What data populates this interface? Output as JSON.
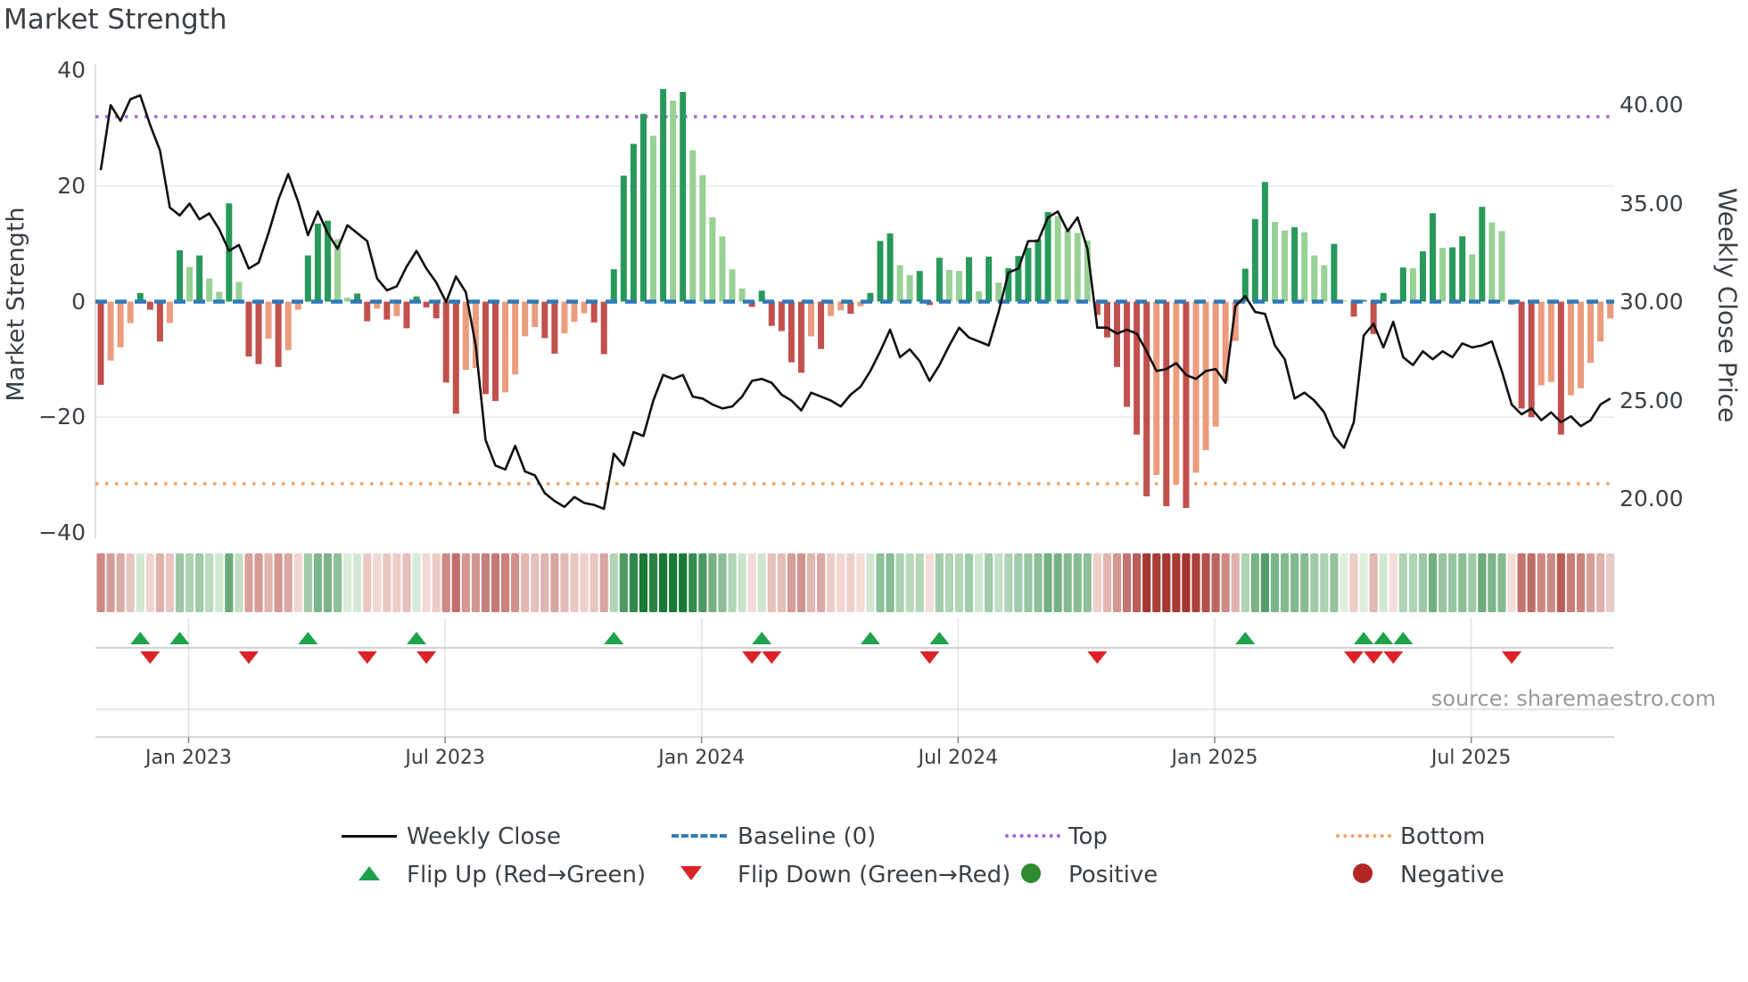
{
  "title": "Market Strength",
  "source": "source: sharemaestro.com",
  "left_axis_title": "Market Strength",
  "right_axis_title": "Weekly Close Price",
  "legend": {
    "weekly_close": "Weekly Close",
    "baseline": "Baseline (0)",
    "top": "Top",
    "bottom": "Bottom",
    "flip_up": "Flip Up (Red→Green)",
    "flip_down": "Flip Down (Green→Red)",
    "positive": "Positive",
    "negative": "Negative"
  },
  "colors": {
    "bar_pos_strong": "#28995a",
    "bar_pos_soft": "#98d194",
    "bar_neg_strong": "#c2504d",
    "bar_neg_soft": "#eb9c7d",
    "baseline": "#2e7ab8",
    "top_line": "#a362d8",
    "bottom_line": "#f2a25c",
    "price_line": "#111111",
    "flip_up_marker": "#1ea24b",
    "flip_down_marker": "#dc2226",
    "positive_dot": "#2e8b2e",
    "negative_dot": "#b22626"
  },
  "chart_data": {
    "type": "bar",
    "subtype": "bar+line composite with heatmap strip and flip markers",
    "title": "Market Strength",
    "xlabel": "",
    "ylabel": "Market Strength",
    "y2label": "Weekly Close Price",
    "ylim": [
      -41,
      41
    ],
    "y2lim": [
      16.8,
      42.1
    ],
    "left_ticks": [
      "40",
      "20",
      "0",
      "−20",
      "−40"
    ],
    "left_tick_values": [
      40,
      20,
      0,
      -20,
      -40
    ],
    "right_ticks": [
      "40.00",
      "35.00",
      "30.00",
      "25.00",
      "20.00"
    ],
    "right_tick_values": [
      40,
      35,
      30,
      25,
      20
    ],
    "x_tick_labels": [
      "Jan 2023",
      "Jul 2023",
      "Jan 2024",
      "Jul 2024",
      "Jan 2025",
      "Jul 2025"
    ],
    "x_tick_weeks": [
      8.9,
      34.9,
      60.9,
      86.9,
      112.9,
      138.9
    ],
    "baseline_value": 0,
    "top_threshold": 32,
    "bottom_threshold": -31.5,
    "weeks_span": "weekly bars, Nov 2022 - Oct 2025",
    "market_strength": [
      -14.4,
      -10.2,
      -7.9,
      -3.7,
      1.5,
      -1.4,
      -6.9,
      -3.7,
      8.9,
      6.0,
      8.0,
      4.0,
      1.7,
      17.0,
      3.4,
      -9.5,
      -10.8,
      -6.4,
      -11.3,
      -8.4,
      -1.4,
      8.0,
      13.5,
      14.0,
      10.8,
      0.7,
      1.4,
      -3.4,
      -1.2,
      -3.1,
      -2.5,
      -4.6,
      0.9,
      -1.0,
      -2.9,
      -14.0,
      -19.4,
      -11.8,
      -11.5,
      -16.0,
      -17.2,
      -15.7,
      -12.6,
      -6.0,
      -4.4,
      -6.3,
      -9.0,
      -5.5,
      -3.5,
      -2.0,
      -3.6,
      -9.1,
      5.6,
      21.8,
      27.3,
      32.5,
      28.7,
      36.8,
      34.8,
      36.3,
      26.2,
      21.9,
      14.6,
      11.3,
      5.6,
      2.3,
      -0.9,
      1.9,
      -4.2,
      -5.1,
      -10.5,
      -12.3,
      -6.0,
      -8.2,
      -2.5,
      -1.5,
      -2.1,
      -0.8,
      1.5,
      10.5,
      11.8,
      6.3,
      4.6,
      5.3,
      -0.6,
      7.6,
      5.5,
      5.3,
      7.7,
      1.8,
      7.8,
      3.3,
      5.8,
      7.9,
      9.3,
      10.8,
      15.5,
      14.8,
      12.3,
      11.9,
      10.6,
      -2.3,
      -6.2,
      -11.3,
      -18.2,
      -23.0,
      -33.7,
      -30.0,
      -35.4,
      -31.6,
      -35.7,
      -29.6,
      -25.7,
      -21.6,
      -13.8,
      -6.8,
      5.7,
      14.3,
      20.7,
      13.8,
      12.3,
      12.9,
      12.0,
      8.0,
      6.3,
      10.0,
      0.2,
      -2.6,
      0.3,
      -5.6,
      1.5,
      -0.4,
      5.9,
      5.8,
      8.7,
      15.3,
      9.3,
      9.4,
      11.3,
      8.2,
      16.4,
      13.7,
      12.2,
      -0.5,
      -18.5,
      -20.0,
      -14.5,
      -13.9,
      -23.0,
      -16.2,
      -15.0,
      -10.6,
      -6.9,
      -2.9
    ],
    "weekly_close": [
      36.7,
      40.0,
      39.2,
      40.3,
      40.5,
      39.0,
      37.7,
      34.8,
      34.4,
      35.0,
      34.2,
      34.5,
      33.7,
      32.6,
      32.9,
      31.7,
      32.0,
      33.5,
      35.2,
      36.5,
      35.1,
      33.4,
      34.6,
      33.5,
      32.7,
      33.9,
      33.5,
      33.1,
      31.2,
      30.6,
      30.8,
      31.8,
      32.6,
      31.7,
      31.0,
      30.0,
      31.3,
      30.5,
      27.8,
      23.0,
      21.7,
      21.5,
      22.7,
      21.4,
      21.2,
      20.3,
      19.9,
      19.6,
      20.1,
      19.8,
      19.7,
      19.5,
      22.3,
      21.7,
      23.4,
      23.2,
      25.0,
      26.3,
      26.1,
      26.3,
      25.2,
      25.1,
      24.8,
      24.6,
      24.7,
      25.2,
      26.0,
      26.1,
      25.9,
      25.3,
      25.0,
      24.5,
      25.4,
      25.2,
      25.0,
      24.7,
      25.3,
      25.7,
      26.5,
      27.5,
      28.6,
      27.2,
      27.6,
      27.0,
      26.0,
      26.8,
      27.8,
      28.7,
      28.2,
      28.0,
      27.8,
      29.5,
      31.5,
      31.7,
      33.1,
      33.1,
      34.3,
      34.6,
      33.6,
      34.3,
      32.7,
      28.7,
      28.7,
      28.4,
      28.6,
      28.4,
      27.5,
      26.5,
      26.6,
      26.9,
      26.3,
      26.1,
      26.5,
      26.6,
      25.9,
      29.8,
      30.3,
      29.5,
      29.4,
      27.8,
      27.1,
      25.1,
      25.4,
      25.0,
      24.4,
      23.2,
      22.6,
      23.9,
      28.3,
      28.9,
      27.7,
      29.0,
      27.2,
      26.8,
      27.5,
      27.1,
      27.5,
      27.2,
      27.9,
      27.7,
      27.8,
      28.0,
      26.5,
      24.8,
      24.3,
      24.6,
      24.0,
      24.4,
      23.9,
      24.2,
      23.7,
      24.0,
      24.8,
      25.1
    ],
    "flip_up_weeks": [
      4,
      8,
      21,
      32,
      52,
      67,
      78,
      85,
      116,
      128,
      130,
      132
    ],
    "flip_down_weeks": [
      5,
      15,
      27,
      33,
      66,
      68,
      84,
      101,
      127,
      129,
      131,
      143
    ],
    "legend_entries": [
      "Weekly Close",
      "Baseline (0)",
      "Top",
      "Bottom",
      "Flip Up (Red→Green)",
      "Flip Down (Green→Red)",
      "Positive",
      "Negative"
    ],
    "grid": "horizontal at ±20, faint vertical at half-year ticks in marker band",
    "legend_position": "bottom, two centered rows"
  }
}
